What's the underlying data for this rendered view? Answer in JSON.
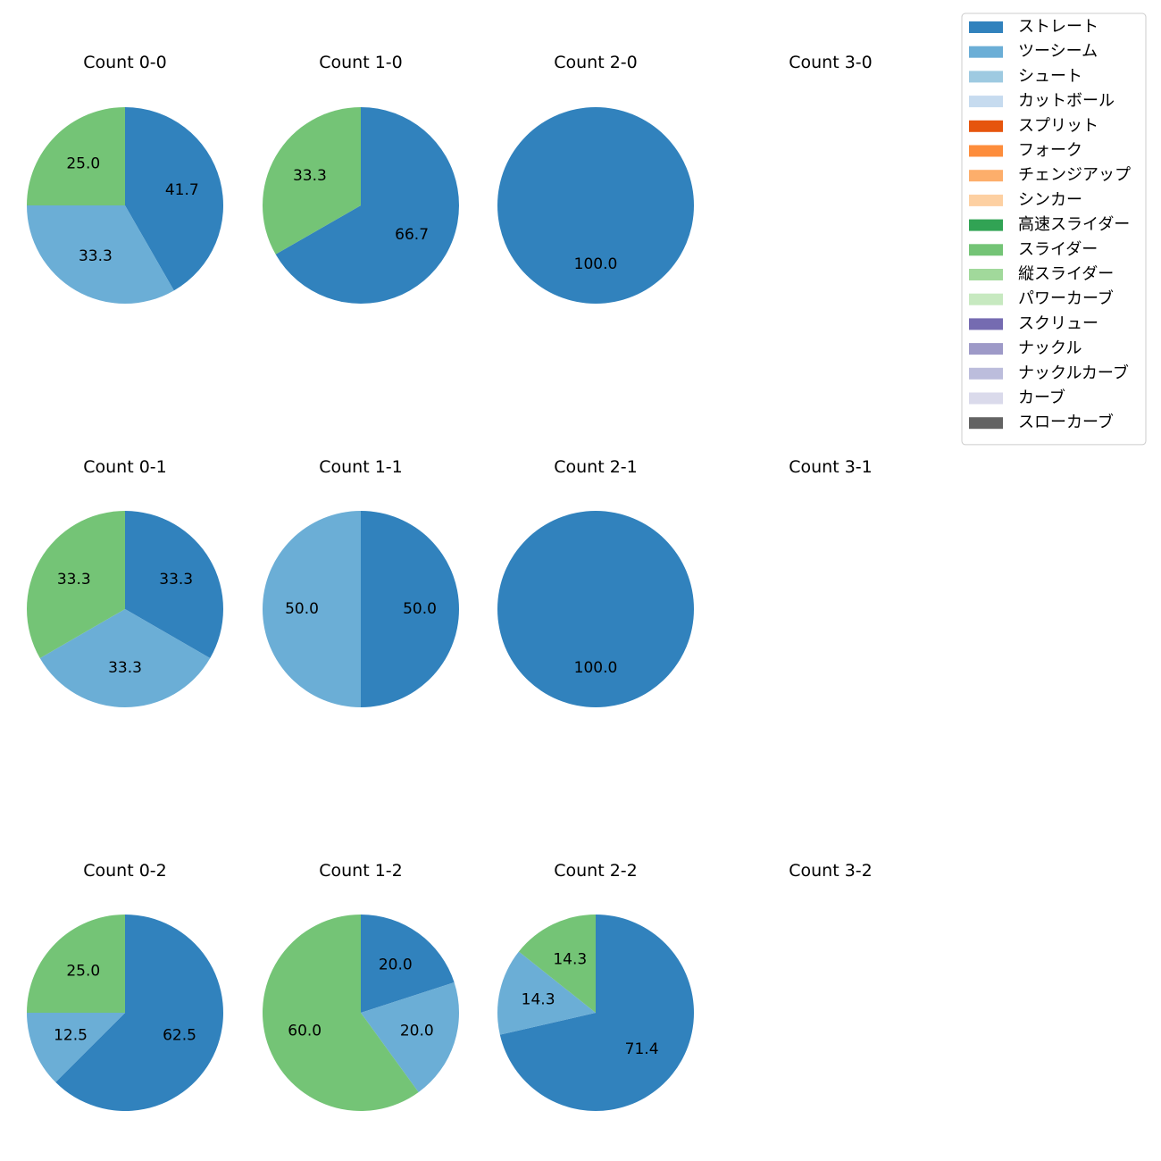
{
  "chart_data": {
    "type": "pie",
    "legend": {
      "placement": "top-right",
      "entries": [
        {
          "name": "ストレート",
          "color": "#3182bd"
        },
        {
          "name": "ツーシーム",
          "color": "#6baed6"
        },
        {
          "name": "シュート",
          "color": "#9ecae1"
        },
        {
          "name": "カットボール",
          "color": "#c6dbef"
        },
        {
          "name": "スプリット",
          "color": "#e6550d"
        },
        {
          "name": "フォーク",
          "color": "#fd8d3c"
        },
        {
          "name": "チェンジアップ",
          "color": "#fdae6b"
        },
        {
          "name": "シンカー",
          "color": "#fdd0a2"
        },
        {
          "name": "高速スライダー",
          "color": "#31a354"
        },
        {
          "name": "スライダー",
          "color": "#74c476"
        },
        {
          "name": "縦スライダー",
          "color": "#a1d99b"
        },
        {
          "name": "パワーカーブ",
          "color": "#c7e9c0"
        },
        {
          "name": "スクリュー",
          "color": "#756bb1"
        },
        {
          "name": "ナックル",
          "color": "#9e9ac8"
        },
        {
          "name": "ナックルカーブ",
          "color": "#bcbddc"
        },
        {
          "name": "カーブ",
          "color": "#dadaeb"
        },
        {
          "name": "スローカーブ",
          "color": "#636363"
        }
      ]
    },
    "charts": [
      {
        "title": "Count 0-0",
        "slices": [
          {
            "pitch": "ストレート",
            "value": 41.7
          },
          {
            "pitch": "ツーシーム",
            "value": 33.3
          },
          {
            "pitch": "スライダー",
            "value": 25.0
          }
        ]
      },
      {
        "title": "Count 1-0",
        "slices": [
          {
            "pitch": "ストレート",
            "value": 66.7
          },
          {
            "pitch": "スライダー",
            "value": 33.3
          }
        ]
      },
      {
        "title": "Count 2-0",
        "slices": [
          {
            "pitch": "ストレート",
            "value": 100.0
          }
        ]
      },
      {
        "title": "Count 3-0",
        "slices": []
      },
      {
        "title": "Count 0-1",
        "slices": [
          {
            "pitch": "ストレート",
            "value": 33.3
          },
          {
            "pitch": "ツーシーム",
            "value": 33.3
          },
          {
            "pitch": "スライダー",
            "value": 33.3
          }
        ]
      },
      {
        "title": "Count 1-1",
        "slices": [
          {
            "pitch": "ストレート",
            "value": 50.0
          },
          {
            "pitch": "ツーシーム",
            "value": 50.0
          }
        ]
      },
      {
        "title": "Count 2-1",
        "slices": [
          {
            "pitch": "ストレート",
            "value": 100.0
          }
        ]
      },
      {
        "title": "Count 3-1",
        "slices": []
      },
      {
        "title": "Count 0-2",
        "slices": [
          {
            "pitch": "ストレート",
            "value": 62.5
          },
          {
            "pitch": "ツーシーム",
            "value": 12.5
          },
          {
            "pitch": "スライダー",
            "value": 25.0
          }
        ]
      },
      {
        "title": "Count 1-2",
        "slices": [
          {
            "pitch": "ストレート",
            "value": 20.0
          },
          {
            "pitch": "ツーシーム",
            "value": 20.0
          },
          {
            "pitch": "スライダー",
            "value": 60.0
          }
        ]
      },
      {
        "title": "Count 2-2",
        "slices": [
          {
            "pitch": "ストレート",
            "value": 71.4
          },
          {
            "pitch": "ツーシーム",
            "value": 14.3
          },
          {
            "pitch": "スライダー",
            "value": 14.3
          }
        ]
      },
      {
        "title": "Count 3-2",
        "slices": []
      }
    ]
  }
}
